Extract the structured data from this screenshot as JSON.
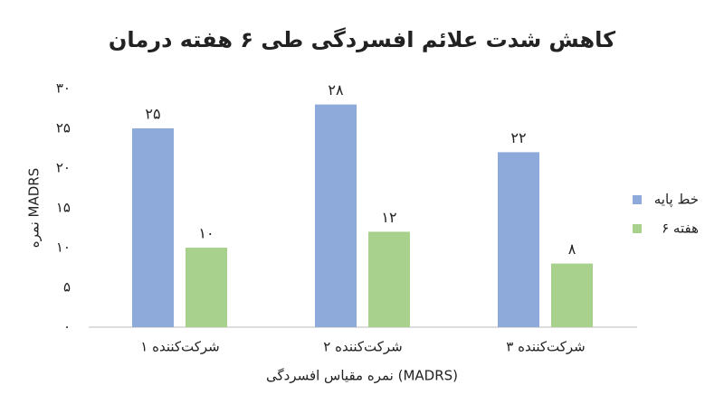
{
  "chart_data": {
    "type": "bar",
    "title": "کاهش شدت علائم افسردگی طی ۶ هفته درمان",
    "x_label": "نمره مقیاس افسردگی (MADRS)",
    "y_label": "نمره MADRS",
    "categories": [
      "شرکت‌کننده ۱",
      "شرکت‌کننده ۲",
      "شرکت‌کننده ۳"
    ],
    "series": [
      {
        "name": "خط پایه",
        "color": "#8eaadb",
        "values": [
          25,
          28,
          22
        ],
        "value_labels": [
          "۲۵",
          "۲۸",
          "۲۲"
        ]
      },
      {
        "name": "هفته ۶",
        "color": "#a9d18e",
        "values": [
          10,
          12,
          8
        ],
        "value_labels": [
          "۱۰",
          "۱۲",
          "۸"
        ]
      }
    ],
    "ylim": [
      0,
      30
    ],
    "yticks": [
      {
        "value": 0,
        "label": "۰"
      },
      {
        "value": 5,
        "label": "۵"
      },
      {
        "value": 10,
        "label": "۱۰"
      },
      {
        "value": 15,
        "label": "۱۵"
      },
      {
        "value": 20,
        "label": "۲۰"
      },
      {
        "value": 25,
        "label": "۲۵"
      },
      {
        "value": 30,
        "label": "۳۰"
      }
    ],
    "grid": false,
    "legend": "right"
  }
}
